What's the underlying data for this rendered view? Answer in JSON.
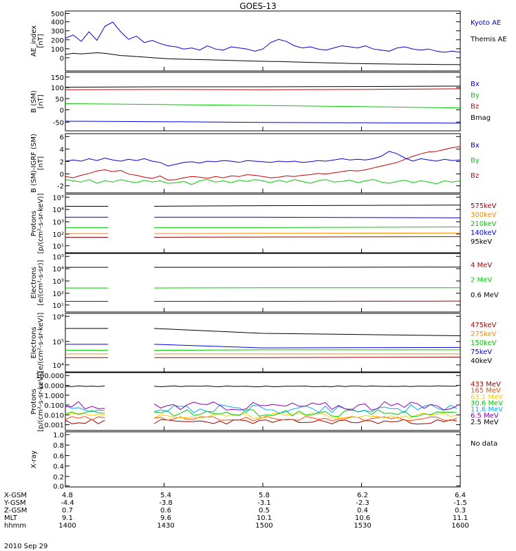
{
  "title": "GOES-13",
  "colors": {
    "blue": "#0000dd",
    "black": "#000000",
    "red": "#cc0000",
    "green": "#00cc00",
    "orange": "#ff8800",
    "cyan": "#00aaff",
    "darkred": "#990000",
    "purple": "#8800aa"
  },
  "panels": [
    {
      "ylabel": [
        "AE_index",
        "[nT]"
      ],
      "yticks": [
        "500",
        "400",
        "300",
        "200",
        "100",
        "0"
      ],
      "legend": [
        {
          "text": "Kyoto AE",
          "color": "#0000dd"
        },
        {
          "text": "Themis AE",
          "color": "#000000"
        }
      ]
    },
    {
      "ylabel": [
        "B (SM)",
        "[nT]"
      ],
      "yticks": [
        "150",
        "100",
        "50",
        "0",
        "-50"
      ],
      "legend": [
        {
          "text": "Bx",
          "color": "#0000dd"
        },
        {
          "text": "By",
          "color": "#00cc00"
        },
        {
          "text": "Bz",
          "color": "#cc0000"
        },
        {
          "text": "Bmag",
          "color": "#000000"
        }
      ]
    },
    {
      "ylabel": [
        "B (SM)-IGRF (SM)",
        "[nT]"
      ],
      "yticks": [
        "6",
        "4",
        "2",
        "0",
        "-2"
      ],
      "legend": [
        {
          "text": "Bx",
          "color": "#0000dd"
        },
        {
          "text": "By",
          "color": "#00cc00"
        },
        {
          "text": "Bz",
          "color": "#cc0000"
        }
      ]
    },
    {
      "ylabel": [
        "Protons",
        "[p/(cm²-s-sr-keV)]"
      ],
      "yticks": [
        "10⁵",
        "10⁴",
        "10³",
        "10²",
        "10¹"
      ],
      "legend": [
        {
          "text": "575keV",
          "color": "#990000"
        },
        {
          "text": "300keV",
          "color": "#ff8800"
        },
        {
          "text": "210keV",
          "color": "#00cc00"
        },
        {
          "text": "140keV",
          "color": "#0000dd"
        },
        {
          "text": "95keV",
          "color": "#000000"
        }
      ]
    },
    {
      "ylabel": [
        "Electrons",
        "[e/(cm²-s-sr)]"
      ],
      "yticks": [
        "10⁵",
        "10⁴",
        "10³",
        "10²",
        "10¹"
      ],
      "legend": [
        {
          "text": "4 MeV",
          "color": "#990000"
        },
        {
          "text": "2 MeV",
          "color": "#00cc00"
        },
        {
          "text": "0.6 MeV",
          "color": "#000000"
        }
      ]
    },
    {
      "ylabel": [
        "Electrons",
        "[e/(cm²-s-sr-keV)]"
      ],
      "yticks": [
        "10⁶",
        "10⁵",
        "10⁴"
      ],
      "legend": [
        {
          "text": "475keV",
          "color": "#990000"
        },
        {
          "text": "275keV",
          "color": "#ff8800"
        },
        {
          "text": "150keV",
          "color": "#00cc00"
        },
        {
          "text": "75keV",
          "color": "#0000dd"
        },
        {
          "text": "40keV",
          "color": "#000000"
        }
      ]
    },
    {
      "ylabel": [
        "Protons",
        "[p/(cm²-s-sr-keV)]"
      ],
      "yticks": [
        "100.000",
        "10.000",
        "1.000",
        "0.100",
        "0.010",
        "0.001"
      ],
      "legend": [
        {
          "text": "433 MeV",
          "color": "#990000"
        },
        {
          "text": "165 MeV",
          "color": "#ff4400"
        },
        {
          "text": "63.1 MeV",
          "color": "#ffcc00"
        },
        {
          "text": "30.6 MeV",
          "color": "#00cc00"
        },
        {
          "text": "11.6 MeV",
          "color": "#00aaff"
        },
        {
          "text": "6.5 MeV",
          "color": "#8800aa"
        },
        {
          "text": "2.5 MeV",
          "color": "#000000"
        }
      ]
    },
    {
      "ylabel": [
        "X-ray",
        ""
      ],
      "yticks": [
        "1.0",
        "0.8",
        "0.6",
        "0.4",
        "0.2",
        "0.0"
      ],
      "legend": [
        {
          "text": "No data",
          "color": "#000000"
        }
      ]
    }
  ],
  "orbit": {
    "labels": [
      "X-GSM",
      "Y-GSM",
      "Z-GSM",
      "MLT",
      "hhmm"
    ],
    "columns": [
      [
        "4.8",
        "-4.4",
        "0.7",
        "9.1",
        "1400"
      ],
      [
        "5.4",
        "-3.8",
        "0.6",
        "9.6",
        "1430"
      ],
      [
        "5.8",
        "-3.1",
        "0.5",
        "10.1",
        "1500"
      ],
      [
        "6.2",
        "-2.3",
        "0.4",
        "10.6",
        "1530"
      ],
      [
        "6.4",
        "-1.5",
        "0.3",
        "11.1",
        "1600"
      ]
    ],
    "date": "2010 Sep 29"
  },
  "chart_data": {
    "type": "line",
    "time_hhmm": [
      "1400",
      "1430",
      "1500",
      "1530",
      "1600"
    ],
    "ae": {
      "kyoto_ae": [
        270,
        300,
        240,
        330,
        250,
        380,
        420,
        330,
        260,
        290,
        230,
        250,
        220,
        200,
        190,
        170,
        180,
        160,
        200,
        170,
        160,
        190,
        180,
        170,
        150,
        170,
        230,
        260,
        240,
        200,
        180,
        190,
        170,
        160,
        180,
        200,
        190,
        180,
        200,
        170,
        160,
        150,
        180,
        190,
        170,
        160,
        170,
        150,
        140,
        150,
        140
      ],
      "themis_ae": [
        120,
        130,
        125,
        130,
        135,
        130,
        120,
        110,
        105,
        100,
        95,
        90,
        85,
        80,
        78,
        75,
        74,
        72,
        70,
        68,
        66,
        64,
        62,
        60,
        58,
        56,
        55,
        54,
        52,
        50,
        48,
        46,
        44,
        42,
        40,
        38,
        36,
        35,
        34,
        33,
        32,
        31,
        30,
        30,
        29,
        28,
        28,
        27,
        26,
        26,
        25
      ]
    },
    "b_sm": {
      "bx": [
        -45,
        -47,
        -50,
        -52,
        -53
      ],
      "by": [
        33,
        29,
        25,
        20,
        14
      ],
      "bz": [
        95,
        96,
        95,
        96,
        99
      ],
      "bmag": [
        106,
        108,
        108,
        109,
        111
      ]
    },
    "db_sm": {
      "bx": [
        2.0,
        2.2,
        2.0,
        2.4,
        2.1,
        2.5,
        2.2,
        2.0,
        2.3,
        2.1,
        2.4,
        2.0,
        1.8,
        1.2,
        1.5,
        1.8,
        1.9,
        1.7,
        2.0,
        1.9,
        2.1,
        2.0,
        1.8,
        2.1,
        2.0,
        1.9,
        1.8,
        2.0,
        1.9,
        2.0,
        1.8,
        1.9,
        2.1,
        2.0,
        2.2,
        2.4,
        2.2,
        2.3,
        2.2,
        2.4,
        2.8,
        3.6,
        3.2,
        2.5,
        2.0,
        2.4,
        2.2,
        2.0,
        2.3,
        2.1,
        2.2
      ],
      "by": [
        -1.0,
        -1.2,
        -1.4,
        -1.0,
        -1.6,
        -1.2,
        -1.4,
        -1.0,
        -1.3,
        -1.5,
        -1.1,
        -1.4,
        -1.2,
        -1.6,
        -1.5,
        -1.3,
        -1.8,
        -1.2,
        -1.0,
        -1.4,
        -1.2,
        -1.5,
        -1.1,
        -1.3,
        -1.0,
        -1.2,
        -1.5,
        -1.1,
        -1.4,
        -1.0,
        -1.3,
        -1.6,
        -1.2,
        -1.0,
        -1.4,
        -1.3,
        -1.1,
        -1.5,
        -1.2,
        -1.0,
        -1.4,
        -1.6,
        -1.3,
        -1.1,
        -1.5,
        -1.2,
        -1.4,
        -1.7,
        -1.2,
        -1.4,
        -1.2
      ],
      "bz": [
        -0.5,
        -0.7,
        -0.3,
        0.0,
        0.4,
        0.6,
        0.3,
        0.5,
        -0.1,
        -0.3,
        -0.6,
        -0.8,
        -0.4,
        -1.1,
        -1.0,
        -0.7,
        -0.5,
        -0.6,
        -0.8,
        -0.5,
        -0.7,
        -0.4,
        -0.5,
        -0.2,
        -0.3,
        -0.5,
        -0.7,
        -0.6,
        -0.4,
        -0.5,
        -0.3,
        -0.2,
        0.0,
        -0.1,
        0.1,
        0.3,
        0.5,
        0.4,
        0.6,
        0.9,
        1.2,
        1.5,
        1.8,
        2.3,
        2.8,
        3.2,
        3.5,
        3.6,
        3.9,
        4.2,
        4.4
      ]
    },
    "protons_eps_log10": {
      "gap_hhmm": [
        "1413",
        "1427"
      ],
      "p575": [
        1.7,
        1.72,
        1.75
      ],
      "p300": [
        2.0,
        2.02,
        2.05
      ],
      "p210": [
        2.5,
        2.5,
        2.55
      ],
      "p140": [
        3.35,
        3.35,
        3.3
      ],
      "p95": [
        4.25,
        4.3,
        4.35
      ]
    },
    "electrons_epead_log10": {
      "gap_hhmm": [
        "1413",
        "1427"
      ],
      "e4mev": [
        1.3,
        1.3,
        1.32
      ],
      "e2mev": [
        2.4,
        2.42,
        2.42
      ],
      "e06mev": [
        4.1,
        4.1,
        4.12
      ]
    },
    "electrons_maged_log10": {
      "gap_hhmm": [
        "1413",
        "1427"
      ],
      "e475": [
        4.3,
        4.3,
        4.32
      ],
      "e275": [
        4.45,
        4.45,
        4.45
      ],
      "e150": [
        4.6,
        4.62,
        4.62
      ],
      "e75": [
        4.85,
        4.7,
        4.72
      ],
      "e40": [
        5.5,
        5.3,
        5.2
      ]
    },
    "protons_hepad": {
      "gap_hhmm": [
        "1413",
        "1427"
      ],
      "p433": 0.002,
      "p165": 0.004,
      "p63": 0.008,
      "p30": 0.015,
      "p11": 0.04,
      "p65": 0.08,
      "p25": 8.0
    },
    "xray": "No data"
  }
}
